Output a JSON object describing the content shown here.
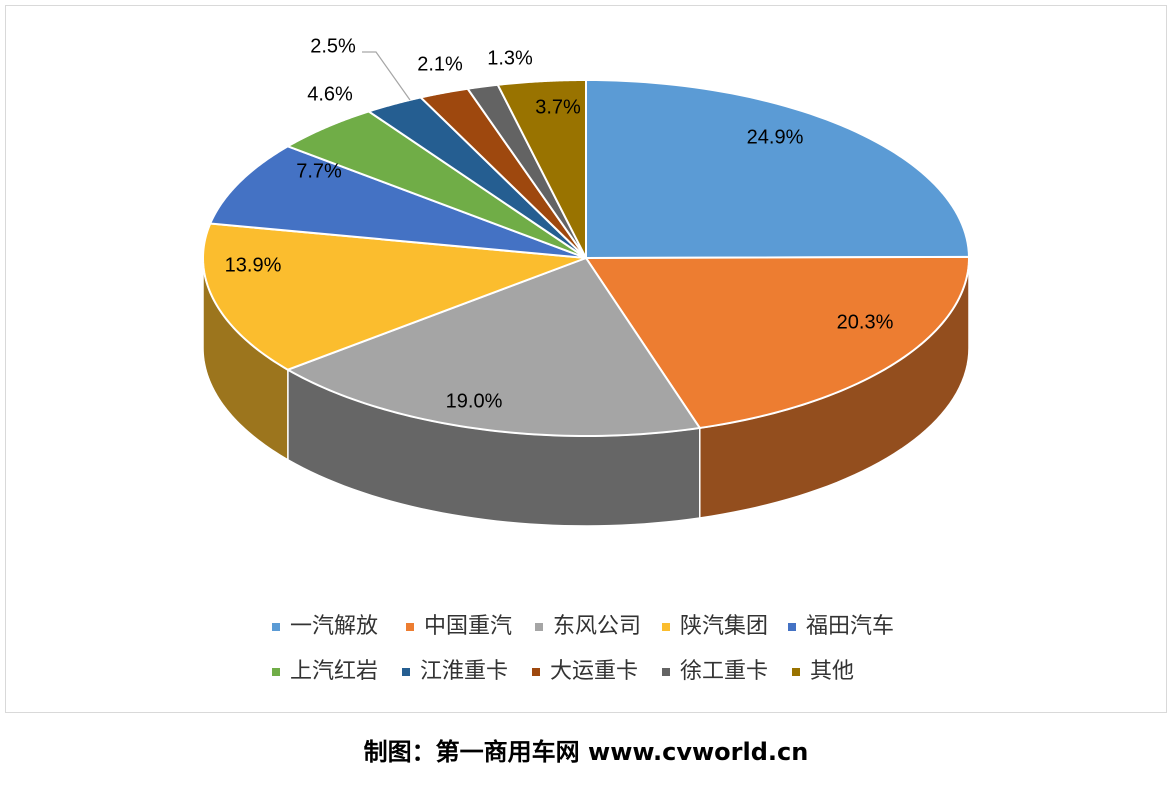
{
  "chart_data": {
    "type": "pie3d",
    "categories": [
      "一汽解放",
      "中国重汽",
      "东风公司",
      "陕汽集团",
      "福田汽车",
      "上汽红岩",
      "江淮重卡",
      "大运重卡",
      "徐工重卡",
      "其他"
    ],
    "values": [
      24.9,
      20.3,
      19.0,
      13.9,
      7.7,
      4.6,
      2.5,
      2.1,
      1.3,
      3.7
    ],
    "value_labels": [
      "24.9%",
      "20.3%",
      "19.0%",
      "13.9%",
      "7.7%",
      "4.6%",
      "2.5%",
      "2.1%",
      "1.3%",
      "3.7%"
    ],
    "colors": [
      "#5b9bd5",
      "#ed7d31",
      "#a5a5a5",
      "#fbbd2e",
      "#4472c4",
      "#70ad47",
      "#255e91",
      "#9e480e",
      "#636363",
      "#997300"
    ],
    "legend": "bottom"
  },
  "caption": "制图：第一商用车网 www.cvworld.cn"
}
